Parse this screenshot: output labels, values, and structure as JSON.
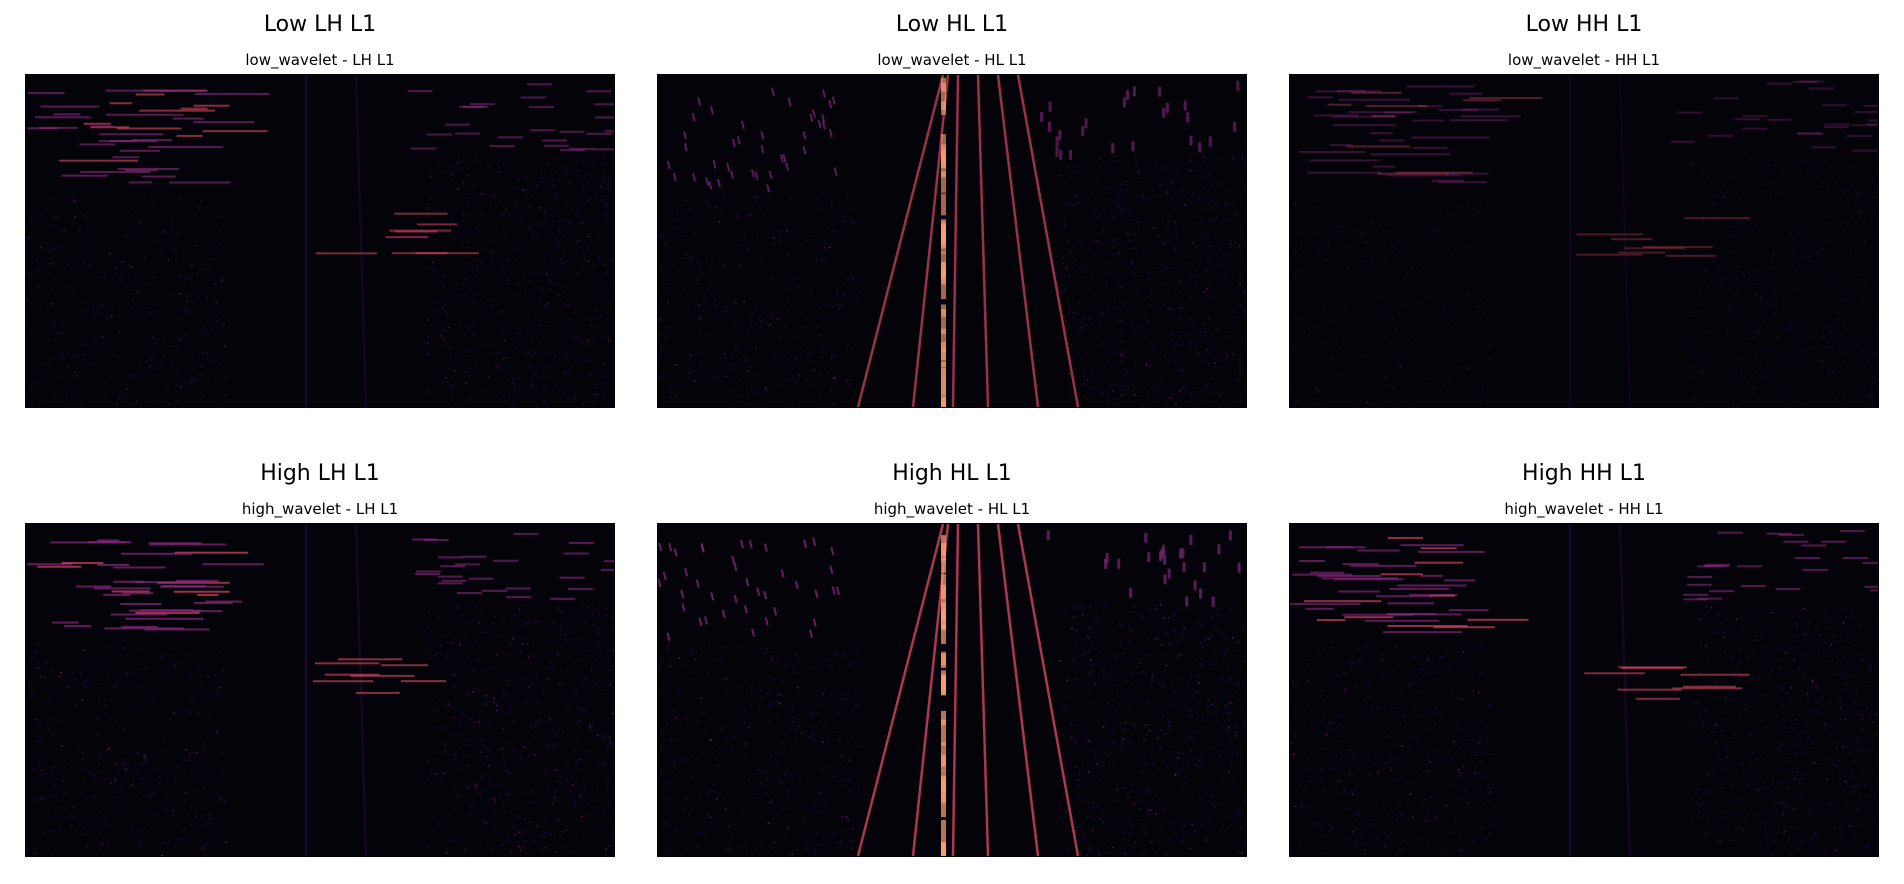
{
  "panels": [
    {
      "title": "Low LH L1",
      "subtitle": "low_wavelet - LH L1",
      "band": "LH",
      "intensity": 0.75
    },
    {
      "title": "Low HL L1",
      "subtitle": "low_wavelet - HL L1",
      "band": "HL",
      "intensity": 0.8
    },
    {
      "title": "Low HH L1",
      "subtitle": "low_wavelet - HH L1",
      "band": "HH",
      "intensity": 0.45
    },
    {
      "title": "High LH L1",
      "subtitle": "high_wavelet - LH L1",
      "band": "LH",
      "intensity": 0.85
    },
    {
      "title": "High HL L1",
      "subtitle": "high_wavelet - HL L1",
      "band": "HL",
      "intensity": 0.9
    },
    {
      "title": "High HH L1",
      "subtitle": "high_wavelet - HH L1",
      "band": "HH",
      "intensity": 0.8
    }
  ],
  "colormap": {
    "background": "#05030a",
    "low": "#3b0f70",
    "mid": "#8c2981",
    "high": "#de4968",
    "peak": "#fe9f6d"
  }
}
